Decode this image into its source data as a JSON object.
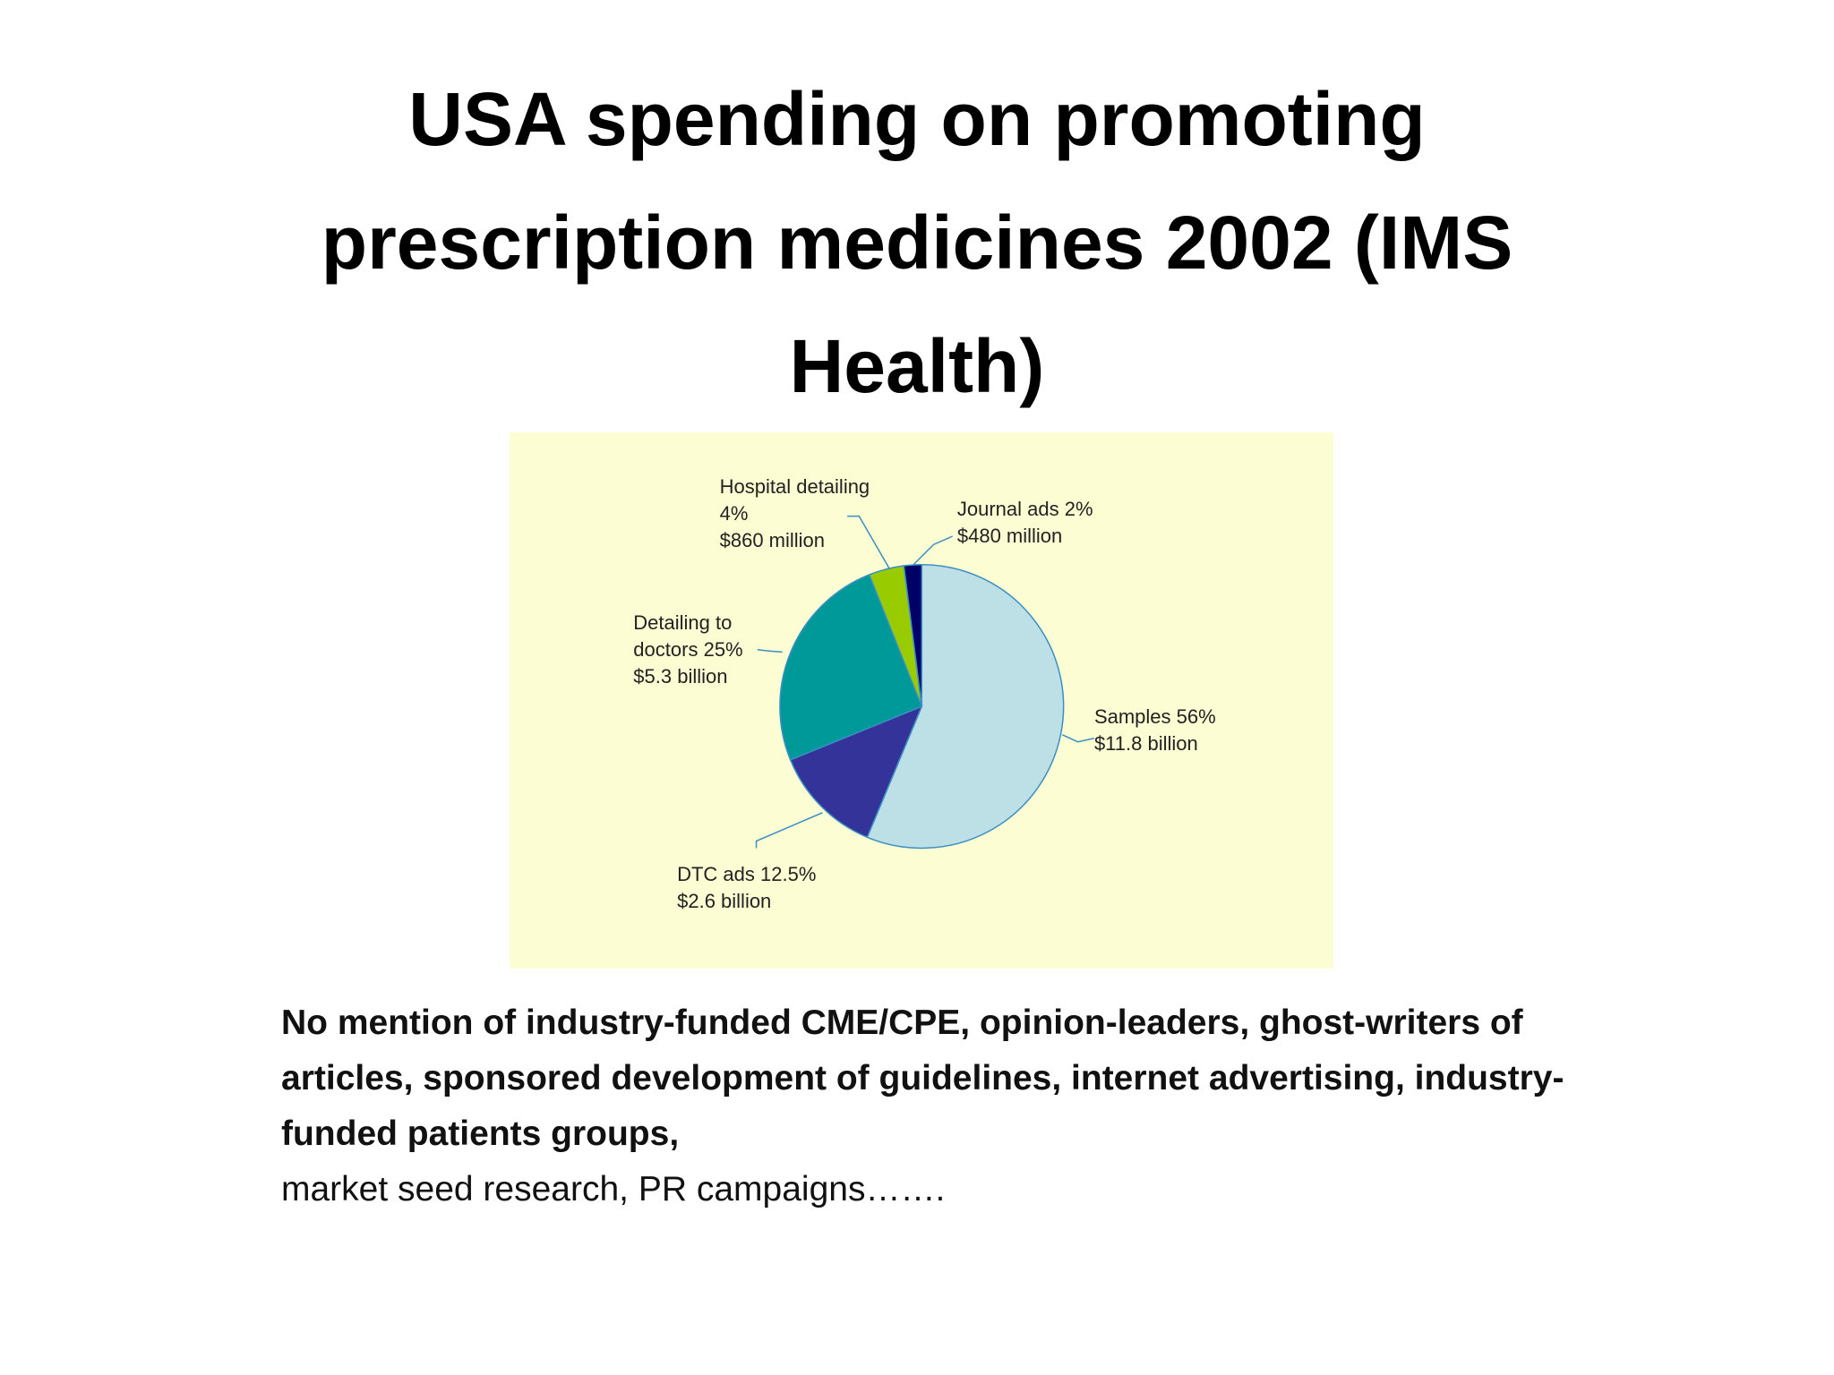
{
  "title": "USA spending on promoting prescription medicines 2002 (IMS Health)",
  "chart_data": {
    "type": "pie",
    "categories": [
      "Samples",
      "DTC ads",
      "Detailing to doctors",
      "Hospital detailing",
      "Journal ads"
    ],
    "values": [
      56,
      12.5,
      25,
      4,
      2
    ],
    "value_labels": [
      "56%",
      "12.5%",
      "25%",
      "4%",
      "2%"
    ],
    "amount_labels": [
      "$11.8 billion",
      "$2.6 billion",
      "$5.3  billion",
      "$860 million",
      "$480 million"
    ],
    "colors": [
      "#bde0e6",
      "#333399",
      "#009999",
      "#99cc00",
      "#000066"
    ]
  },
  "note_bold": "No mention of industry-funded CME/CPE, opinion-leaders, ghost-writers of articles, sponsored development of guidelines, internet advertising, industry-funded patients groups,",
  "note": "market seed research, PR campaigns……."
}
